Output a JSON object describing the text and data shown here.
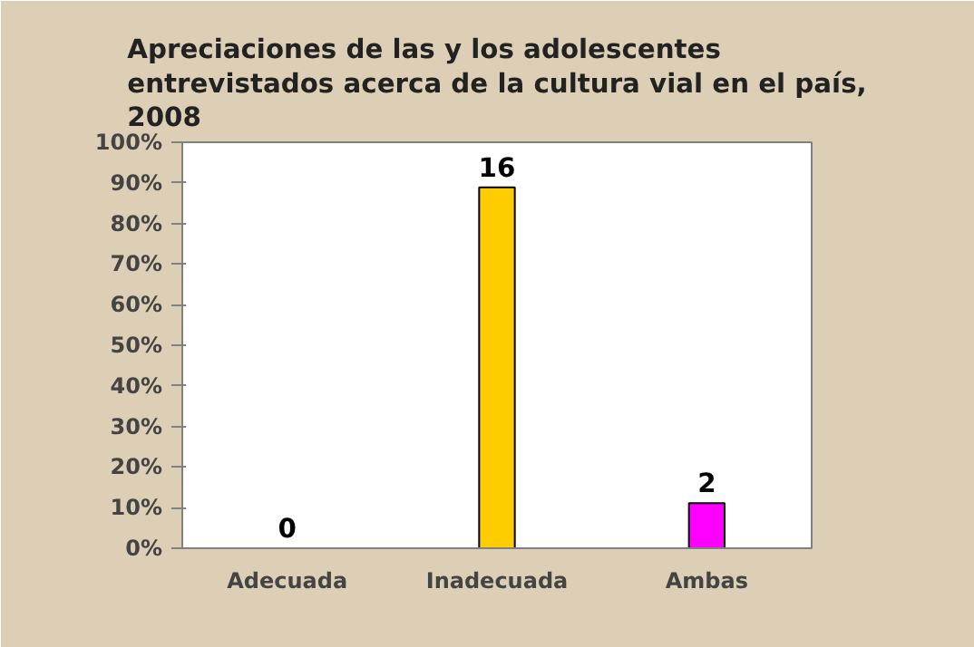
{
  "chart_data": {
    "type": "bar",
    "title": "Apreciaciones de las y los adolescentes entrevistados acerca de la cultura vial en el país, 2008",
    "categories": [
      "Adecuada",
      "Inadecuada",
      "Ambas"
    ],
    "values": [
      0,
      88.9,
      11.1
    ],
    "colors": [
      "#ffcc00",
      "#ffcc00",
      "#ff00ff"
    ],
    "annotations": [
      {
        "text": "0",
        "x": "Adecuada",
        "y": 0
      },
      {
        "text": "16",
        "x": "Inadecuada",
        "y": 88.9
      },
      {
        "text": "2",
        "x": "Ambas",
        "y": 11.1
      }
    ],
    "ylim": [
      0,
      100
    ],
    "yticks": [
      {
        "value": 0,
        "label": "0%"
      },
      {
        "value": 10,
        "label": "10%"
      },
      {
        "value": 20,
        "label": "20%"
      },
      {
        "value": 30,
        "label": "30%"
      },
      {
        "value": 40,
        "label": "40%"
      },
      {
        "value": 50,
        "label": "50%"
      },
      {
        "value": 60,
        "label": "60%"
      },
      {
        "value": 70,
        "label": "70%"
      },
      {
        "value": 80,
        "label": "80%"
      },
      {
        "value": 90,
        "label": "90%"
      },
      {
        "value": 100,
        "label": "100%"
      }
    ],
    "grid": false
  }
}
